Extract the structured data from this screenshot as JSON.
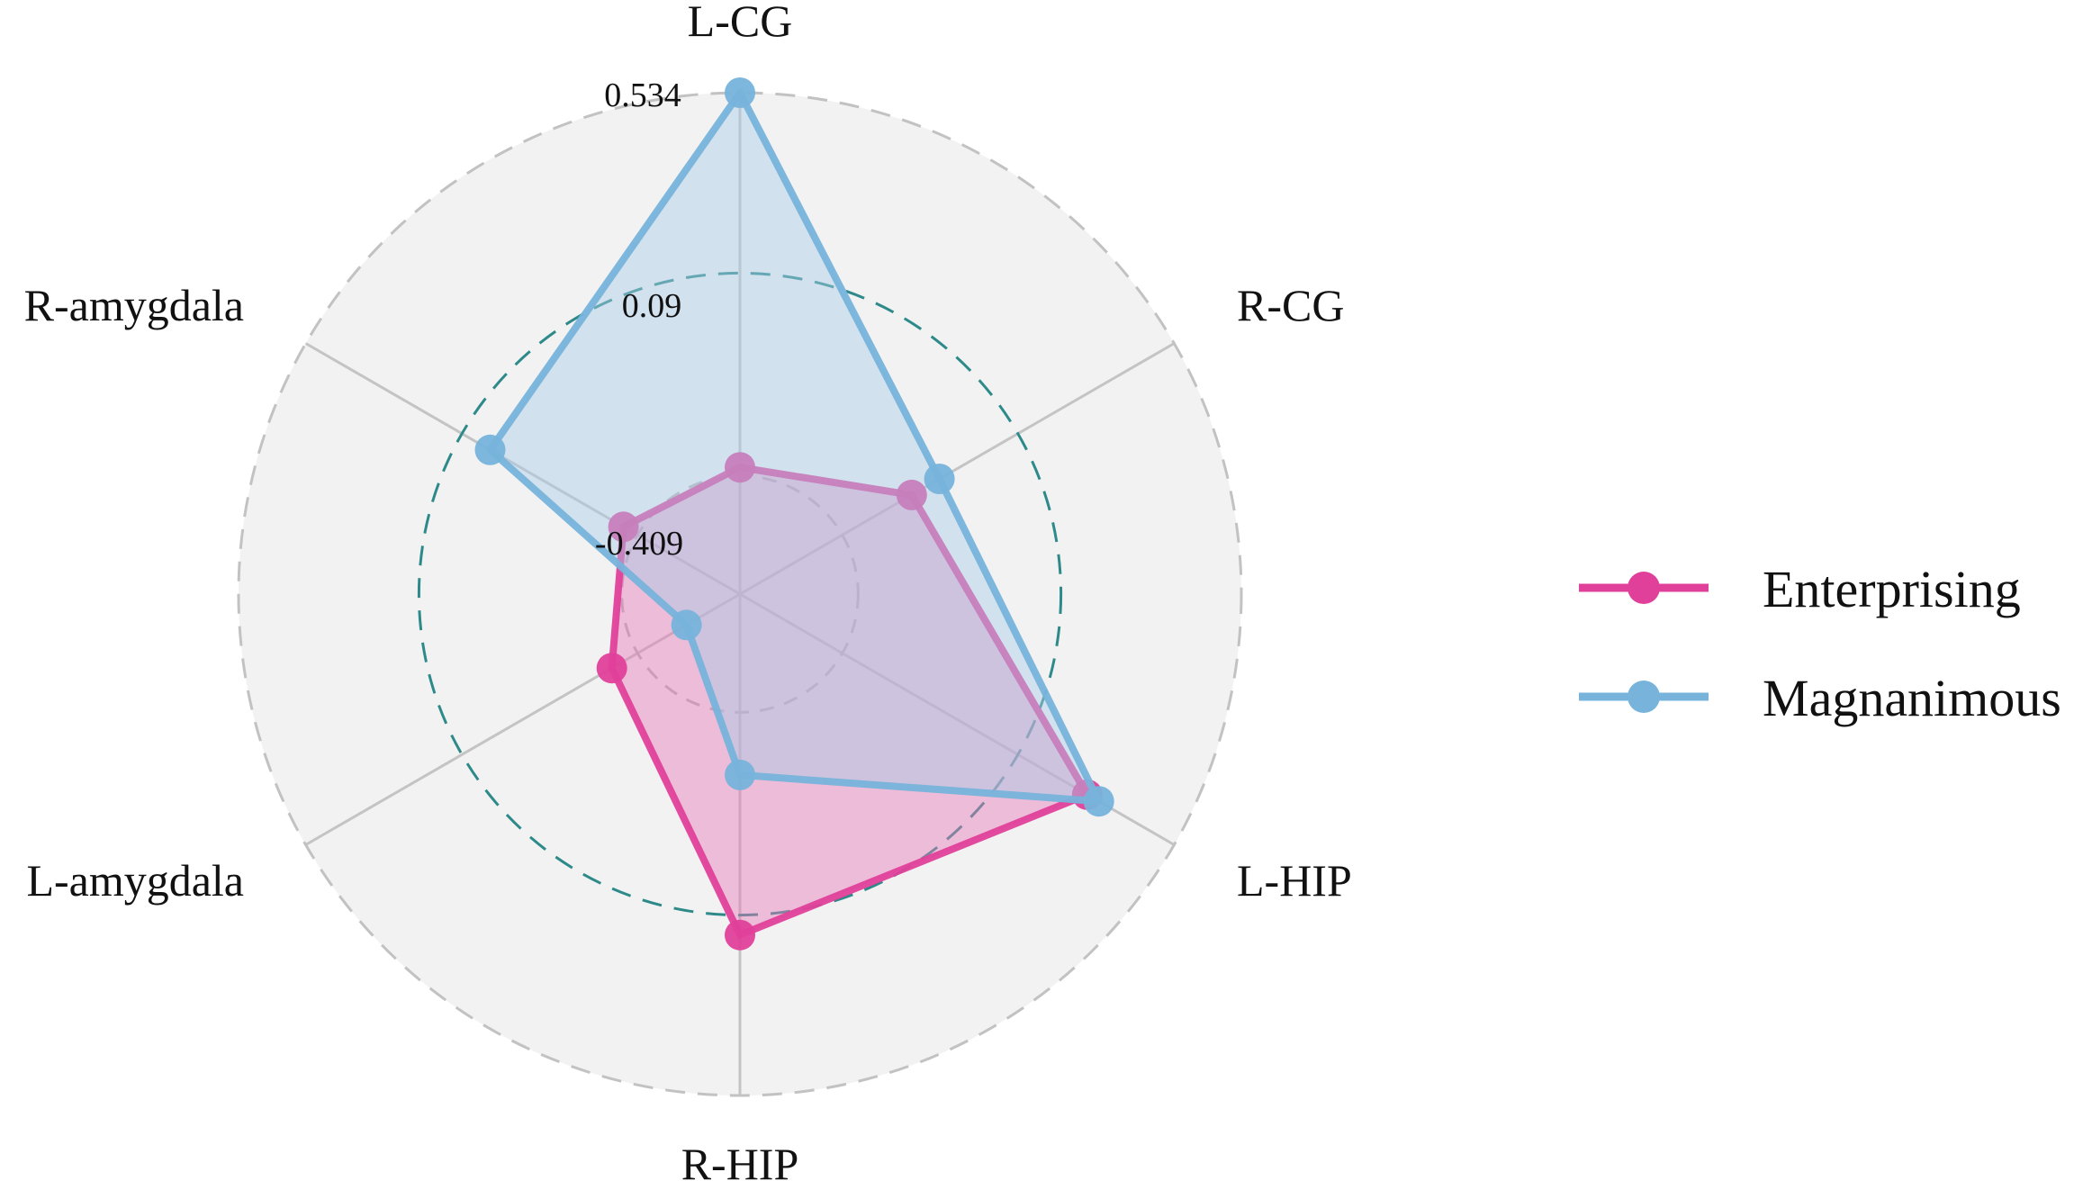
{
  "chart_data": {
    "type": "radar",
    "axes": [
      "L-CG",
      "R-CG",
      "L-HIP",
      "R-HIP",
      "L-amygdala",
      "R-amygdala"
    ],
    "range": [
      -0.7,
      0.534
    ],
    "ticks": [
      {
        "value": 0.534,
        "label": "0.534"
      },
      {
        "value": 0.09,
        "label": "0.09"
      },
      {
        "value": -0.409,
        "label": "-0.409"
      }
    ],
    "series": [
      {
        "name": "Enterprising",
        "color": "#e0409a",
        "fill": "#e67ab8",
        "values": [
          -0.388,
          -0.212,
          0.287,
          0.139,
          -0.336,
          -0.369
        ]
      },
      {
        "name": "Magnanimous",
        "color": "#77b3db",
        "fill": "#a9cbe6",
        "values": [
          0.534,
          -0.133,
          0.32,
          -0.255,
          -0.548,
          0.01
        ]
      }
    ],
    "grid": true,
    "legend_position": "right",
    "colors": {
      "background_disc": "#f2f2f2",
      "outer_ring": "#c2c2c2",
      "spoke": "#c4c4c4",
      "middle_ring": "#2e8a8a",
      "inner_ring": "#b8b8b8"
    }
  }
}
